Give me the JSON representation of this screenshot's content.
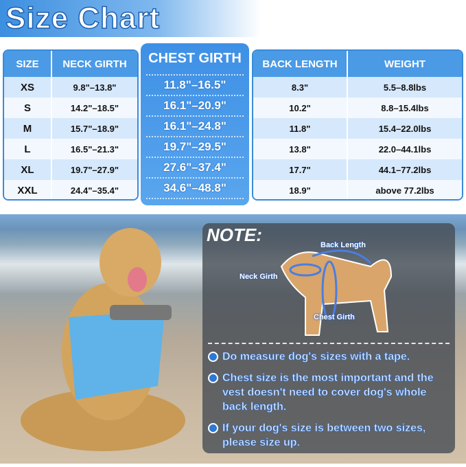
{
  "title": "Size Chart",
  "table": {
    "headers": [
      "SIZE",
      "NECK GIRTH",
      "CHEST GIRTH",
      "BACK LENGTH",
      "WEIGHT"
    ],
    "rows": [
      [
        "XS",
        "9.8\"–13.8\"",
        "11.8\"–16.5\"",
        "8.3\"",
        "5.5–8.8lbs"
      ],
      [
        "S",
        "14.2\"–18.5\"",
        "16.1\"–20.9\"",
        "10.2\"",
        "8.8–15.4lbs"
      ],
      [
        "M",
        "15.7\"–18.9\"",
        "16.1\"–24.8\"",
        "11.8\"",
        "15.4–22.0lbs"
      ],
      [
        "L",
        "16.5\"–21.3\"",
        "19.7\"–29.5\"",
        "13.8\"",
        "22.0–44.1lbs"
      ],
      [
        "XL",
        "19.7\"–27.9\"",
        "27.6\"–37.4\"",
        "17.7\"",
        "44.1–77.2lbs"
      ],
      [
        "XXL",
        "24.4\"–35.4\"",
        "34.6\"–48.8\"",
        "18.9\"",
        "above 77.2lbs"
      ]
    ]
  },
  "note": {
    "title": "NOTE:",
    "labels": {
      "back": "Back Length",
      "neck": "Neck Girth",
      "chest": "Chest Girth"
    },
    "bullets": [
      "Do measure dog's sizes with a tape.",
      "Chest size is the most important and the vest doesn't need to cover dog's whole back length.",
      "If your dog's size is between two sizes, please size up."
    ]
  },
  "colors": {
    "accent": "#3e90e6",
    "header": "#4a9ae6"
  }
}
